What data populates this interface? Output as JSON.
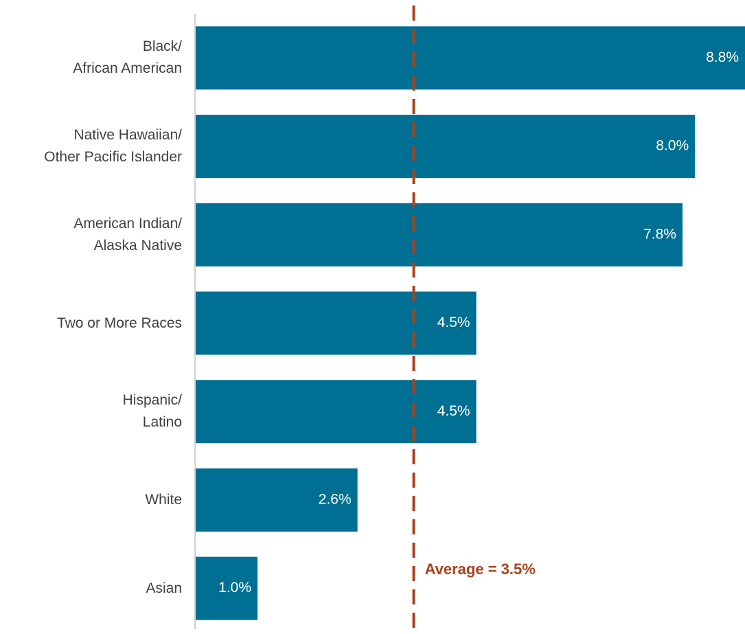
{
  "chart_data": {
    "type": "hbar",
    "categories": [
      "Black/\nAfrican American",
      "Native Hawaiian/\nOther Pacific Islander",
      "American Indian/\nAlaska Native",
      "Two or More Races",
      "Hispanic/\nLatino",
      "White",
      "Asian"
    ],
    "values": [
      8.8,
      8.0,
      7.8,
      4.5,
      4.5,
      2.6,
      1.0
    ],
    "value_labels": [
      "8.8%",
      "8.0%",
      "7.8%",
      "4.5%",
      "4.5%",
      "2.6%",
      "1.0%"
    ],
    "color": "#006f94",
    "xlim": [
      0,
      8.8
    ],
    "reference_line": {
      "value": 3.5,
      "label": "Average = 3.5%",
      "color": "#a8431d"
    }
  }
}
